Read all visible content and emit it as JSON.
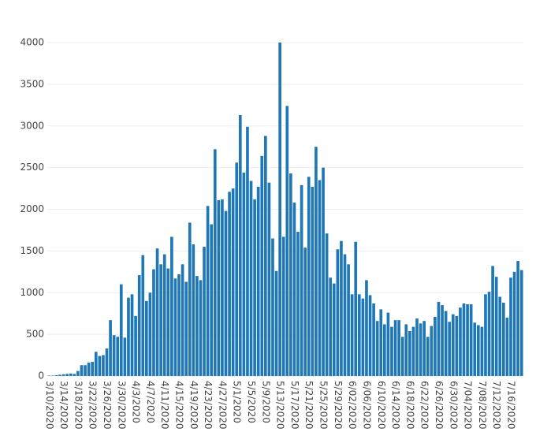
{
  "chart_data": {
    "type": "bar",
    "color": "#1f77b4",
    "grid": true,
    "ylim": [
      0,
      4000
    ],
    "yticks": [
      0,
      500,
      1000,
      1500,
      2000,
      2500,
      3000,
      3500,
      4000
    ],
    "categories": [
      "3/10/2020",
      null,
      null,
      null,
      "3/14/2020",
      null,
      null,
      null,
      "3/18/2020",
      null,
      null,
      null,
      "3/22/2020",
      null,
      null,
      null,
      "3/26/2020",
      null,
      null,
      null,
      "3/30/2020",
      null,
      null,
      null,
      "4/3/2020",
      null,
      null,
      null,
      "4/7/2020",
      null,
      null,
      null,
      "4/11/2020",
      null,
      null,
      null,
      "4/15/2020",
      null,
      null,
      null,
      "4/19/2020",
      null,
      null,
      null,
      "4/23/2020",
      null,
      null,
      null,
      "4/27/2020",
      null,
      null,
      null,
      "5/1/2020",
      null,
      null,
      null,
      "5/5/2020",
      null,
      null,
      null,
      "5/9/2020",
      null,
      null,
      null,
      "5/13/2020",
      null,
      null,
      null,
      "5/17/2020",
      null,
      null,
      null,
      "5/21/2020",
      null,
      null,
      null,
      "5/25/2020",
      null,
      null,
      null,
      "5/29/2020",
      null,
      null,
      null,
      "6/02/2020",
      null,
      null,
      null,
      "6/06/2020",
      null,
      null,
      null,
      "6/10/2020",
      null,
      null,
      null,
      "6/14/2020",
      null,
      null,
      null,
      "6/18/2020",
      null,
      null,
      null,
      "6/22/2020",
      null,
      null,
      null,
      "6/26/2020",
      null,
      null,
      null,
      "6/30/2020",
      null,
      null,
      null,
      "7/04/2020",
      null,
      null,
      null,
      "7/08/2020",
      null,
      null,
      null,
      "7/12/2020",
      null,
      null,
      null,
      "7/16/2020",
      null,
      null,
      null
    ],
    "values": [
      5,
      5,
      10,
      15,
      20,
      25,
      30,
      25,
      60,
      130,
      130,
      160,
      170,
      290,
      240,
      250,
      330,
      670,
      490,
      470,
      1100,
      460,
      940,
      980,
      720,
      1210,
      1450,
      900,
      1000,
      1280,
      1530,
      1340,
      1460,
      1290,
      1670,
      1170,
      1220,
      1340,
      1130,
      1840,
      1580,
      1200,
      1150,
      1550,
      2040,
      1820,
      2720,
      2110,
      2120,
      1980,
      2210,
      2250,
      2560,
      3130,
      2440,
      2990,
      2340,
      2120,
      2270,
      2640,
      2880,
      2320,
      1650,
      1260,
      4000,
      1670,
      3240,
      2430,
      2080,
      1730,
      2290,
      1540,
      2390,
      2270,
      2750,
      2350,
      2500,
      1710,
      1180,
      1110,
      1520,
      1620,
      1460,
      1340,
      980,
      1610,
      980,
      930,
      1150,
      970,
      870,
      660,
      800,
      620,
      760,
      590,
      670,
      670,
      470,
      620,
      540,
      590,
      690,
      630,
      660,
      470,
      600,
      710,
      890,
      850,
      780,
      650,
      740,
      720,
      820,
      870,
      860,
      860,
      640,
      610,
      590,
      980,
      1010,
      1320,
      1190,
      950,
      880,
      700,
      1180,
      1250,
      1380,
      1270
    ]
  }
}
